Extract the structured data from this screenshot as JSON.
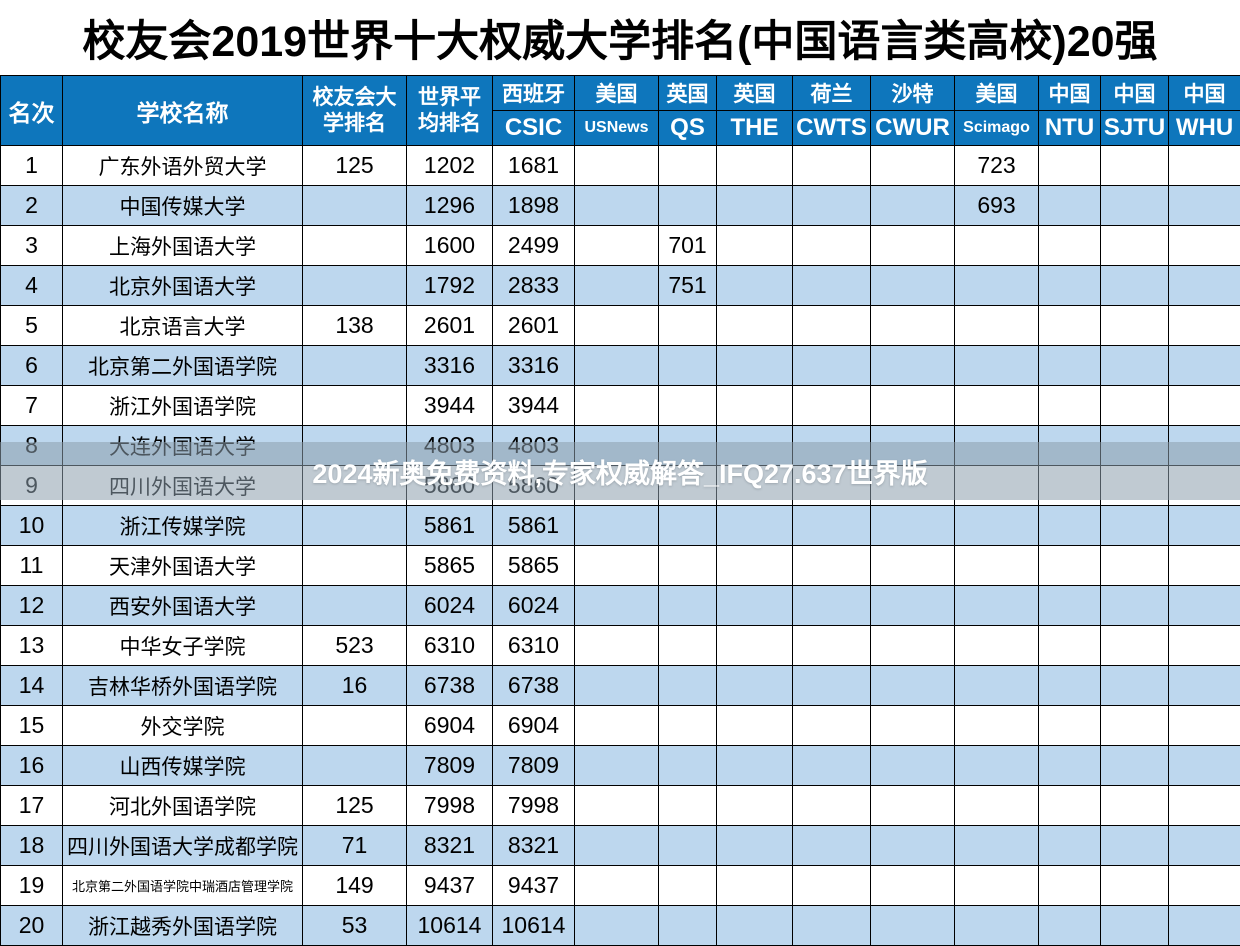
{
  "title": "校友会2019世界十大权威大学排名(中国语言类高校)20强",
  "watermark": "2024新奥免费资料,专家权威解答_IFQ27.637世界版",
  "colors": {
    "header_bg": "#0E76BC",
    "header_text": "#FFFFFF",
    "row_alt_bg": "#BDD7EE",
    "row_bg": "#FFFFFF",
    "border": "#000000",
    "overlay_bg": "rgba(141,158,173,0.55)"
  },
  "header": {
    "rank": "名次",
    "name": "学校名称",
    "cuaa": "校友会大学排名",
    "world": "世界平均排名",
    "sub": [
      {
        "country": "西班牙",
        "org": "CSIC"
      },
      {
        "country": "美国",
        "org": "USNews"
      },
      {
        "country": "英国",
        "org": "QS"
      },
      {
        "country": "英国",
        "org": "THE"
      },
      {
        "country": "荷兰",
        "org": "CWTS"
      },
      {
        "country": "沙特",
        "org": "CWUR"
      },
      {
        "country": "美国",
        "org": "Scimago"
      },
      {
        "country": "中国",
        "org": "NTU"
      },
      {
        "country": "中国",
        "org": "SJTU"
      },
      {
        "country": "中国",
        "org": "WHU"
      }
    ]
  },
  "chart_data": {
    "type": "table",
    "title": "校友会2019世界十大权威大学排名(中国语言类高校)20强",
    "columns": [
      "名次",
      "学校名称",
      "校友会大学排名",
      "世界平均排名",
      "西班牙CSIC",
      "美国USNews",
      "英国QS",
      "英国THE",
      "荷兰CWTS",
      "沙特CWUR",
      "美国Scimago",
      "中国NTU",
      "中国SJTU",
      "中国WHU"
    ],
    "rows": [
      {
        "small_name": false,
        "cells": [
          "1",
          "广东外语外贸大学",
          "125",
          "1202",
          "1681",
          "",
          "",
          "",
          "",
          "",
          "723",
          "",
          "",
          ""
        ]
      },
      {
        "small_name": false,
        "cells": [
          "2",
          "中国传媒大学",
          "",
          "1296",
          "1898",
          "",
          "",
          "",
          "",
          "",
          "693",
          "",
          "",
          ""
        ]
      },
      {
        "small_name": false,
        "cells": [
          "3",
          "上海外国语大学",
          "",
          "1600",
          "2499",
          "",
          "701",
          "",
          "",
          "",
          "",
          "",
          "",
          ""
        ]
      },
      {
        "small_name": false,
        "cells": [
          "4",
          "北京外国语大学",
          "",
          "1792",
          "2833",
          "",
          "751",
          "",
          "",
          "",
          "",
          "",
          "",
          ""
        ]
      },
      {
        "small_name": false,
        "cells": [
          "5",
          "北京语言大学",
          "138",
          "2601",
          "2601",
          "",
          "",
          "",
          "",
          "",
          "",
          "",
          "",
          ""
        ]
      },
      {
        "small_name": false,
        "cells": [
          "6",
          "北京第二外国语学院",
          "",
          "3316",
          "3316",
          "",
          "",
          "",
          "",
          "",
          "",
          "",
          "",
          ""
        ]
      },
      {
        "small_name": false,
        "cells": [
          "7",
          "浙江外国语学院",
          "",
          "3944",
          "3944",
          "",
          "",
          "",
          "",
          "",
          "",
          "",
          "",
          ""
        ]
      },
      {
        "small_name": false,
        "cells": [
          "8",
          "大连外国语大学",
          "",
          "4803",
          "4803",
          "",
          "",
          "",
          "",
          "",
          "",
          "",
          "",
          ""
        ]
      },
      {
        "small_name": false,
        "cells": [
          "9",
          "四川外国语大学",
          "",
          "5860",
          "5860",
          "",
          "",
          "",
          "",
          "",
          "",
          "",
          "",
          ""
        ]
      },
      {
        "small_name": false,
        "cells": [
          "10",
          "浙江传媒学院",
          "",
          "5861",
          "5861",
          "",
          "",
          "",
          "",
          "",
          "",
          "",
          "",
          ""
        ]
      },
      {
        "small_name": false,
        "cells": [
          "11",
          "天津外国语大学",
          "",
          "5865",
          "5865",
          "",
          "",
          "",
          "",
          "",
          "",
          "",
          "",
          ""
        ]
      },
      {
        "small_name": false,
        "cells": [
          "12",
          "西安外国语大学",
          "",
          "6024",
          "6024",
          "",
          "",
          "",
          "",
          "",
          "",
          "",
          "",
          ""
        ]
      },
      {
        "small_name": false,
        "cells": [
          "13",
          "中华女子学院",
          "523",
          "6310",
          "6310",
          "",
          "",
          "",
          "",
          "",
          "",
          "",
          "",
          ""
        ]
      },
      {
        "small_name": false,
        "cells": [
          "14",
          "吉林华桥外国语学院",
          "16",
          "6738",
          "6738",
          "",
          "",
          "",
          "",
          "",
          "",
          "",
          "",
          ""
        ]
      },
      {
        "small_name": false,
        "cells": [
          "15",
          "外交学院",
          "",
          "6904",
          "6904",
          "",
          "",
          "",
          "",
          "",
          "",
          "",
          "",
          ""
        ]
      },
      {
        "small_name": false,
        "cells": [
          "16",
          "山西传媒学院",
          "",
          "7809",
          "7809",
          "",
          "",
          "",
          "",
          "",
          "",
          "",
          "",
          ""
        ]
      },
      {
        "small_name": false,
        "cells": [
          "17",
          "河北外国语学院",
          "125",
          "7998",
          "7998",
          "",
          "",
          "",
          "",
          "",
          "",
          "",
          "",
          ""
        ]
      },
      {
        "small_name": false,
        "cells": [
          "18",
          "四川外国语大学成都学院",
          "71",
          "8321",
          "8321",
          "",
          "",
          "",
          "",
          "",
          "",
          "",
          "",
          ""
        ]
      },
      {
        "small_name": true,
        "cells": [
          "19",
          "北京第二外国语学院中瑞酒店管理学院",
          "149",
          "9437",
          "9437",
          "",
          "",
          "",
          "",
          "",
          "",
          "",
          "",
          ""
        ]
      },
      {
        "small_name": false,
        "cells": [
          "20",
          "浙江越秀外国语学院",
          "53",
          "10614",
          "10614",
          "",
          "",
          "",
          "",
          "",
          "",
          "",
          "",
          ""
        ]
      }
    ]
  }
}
